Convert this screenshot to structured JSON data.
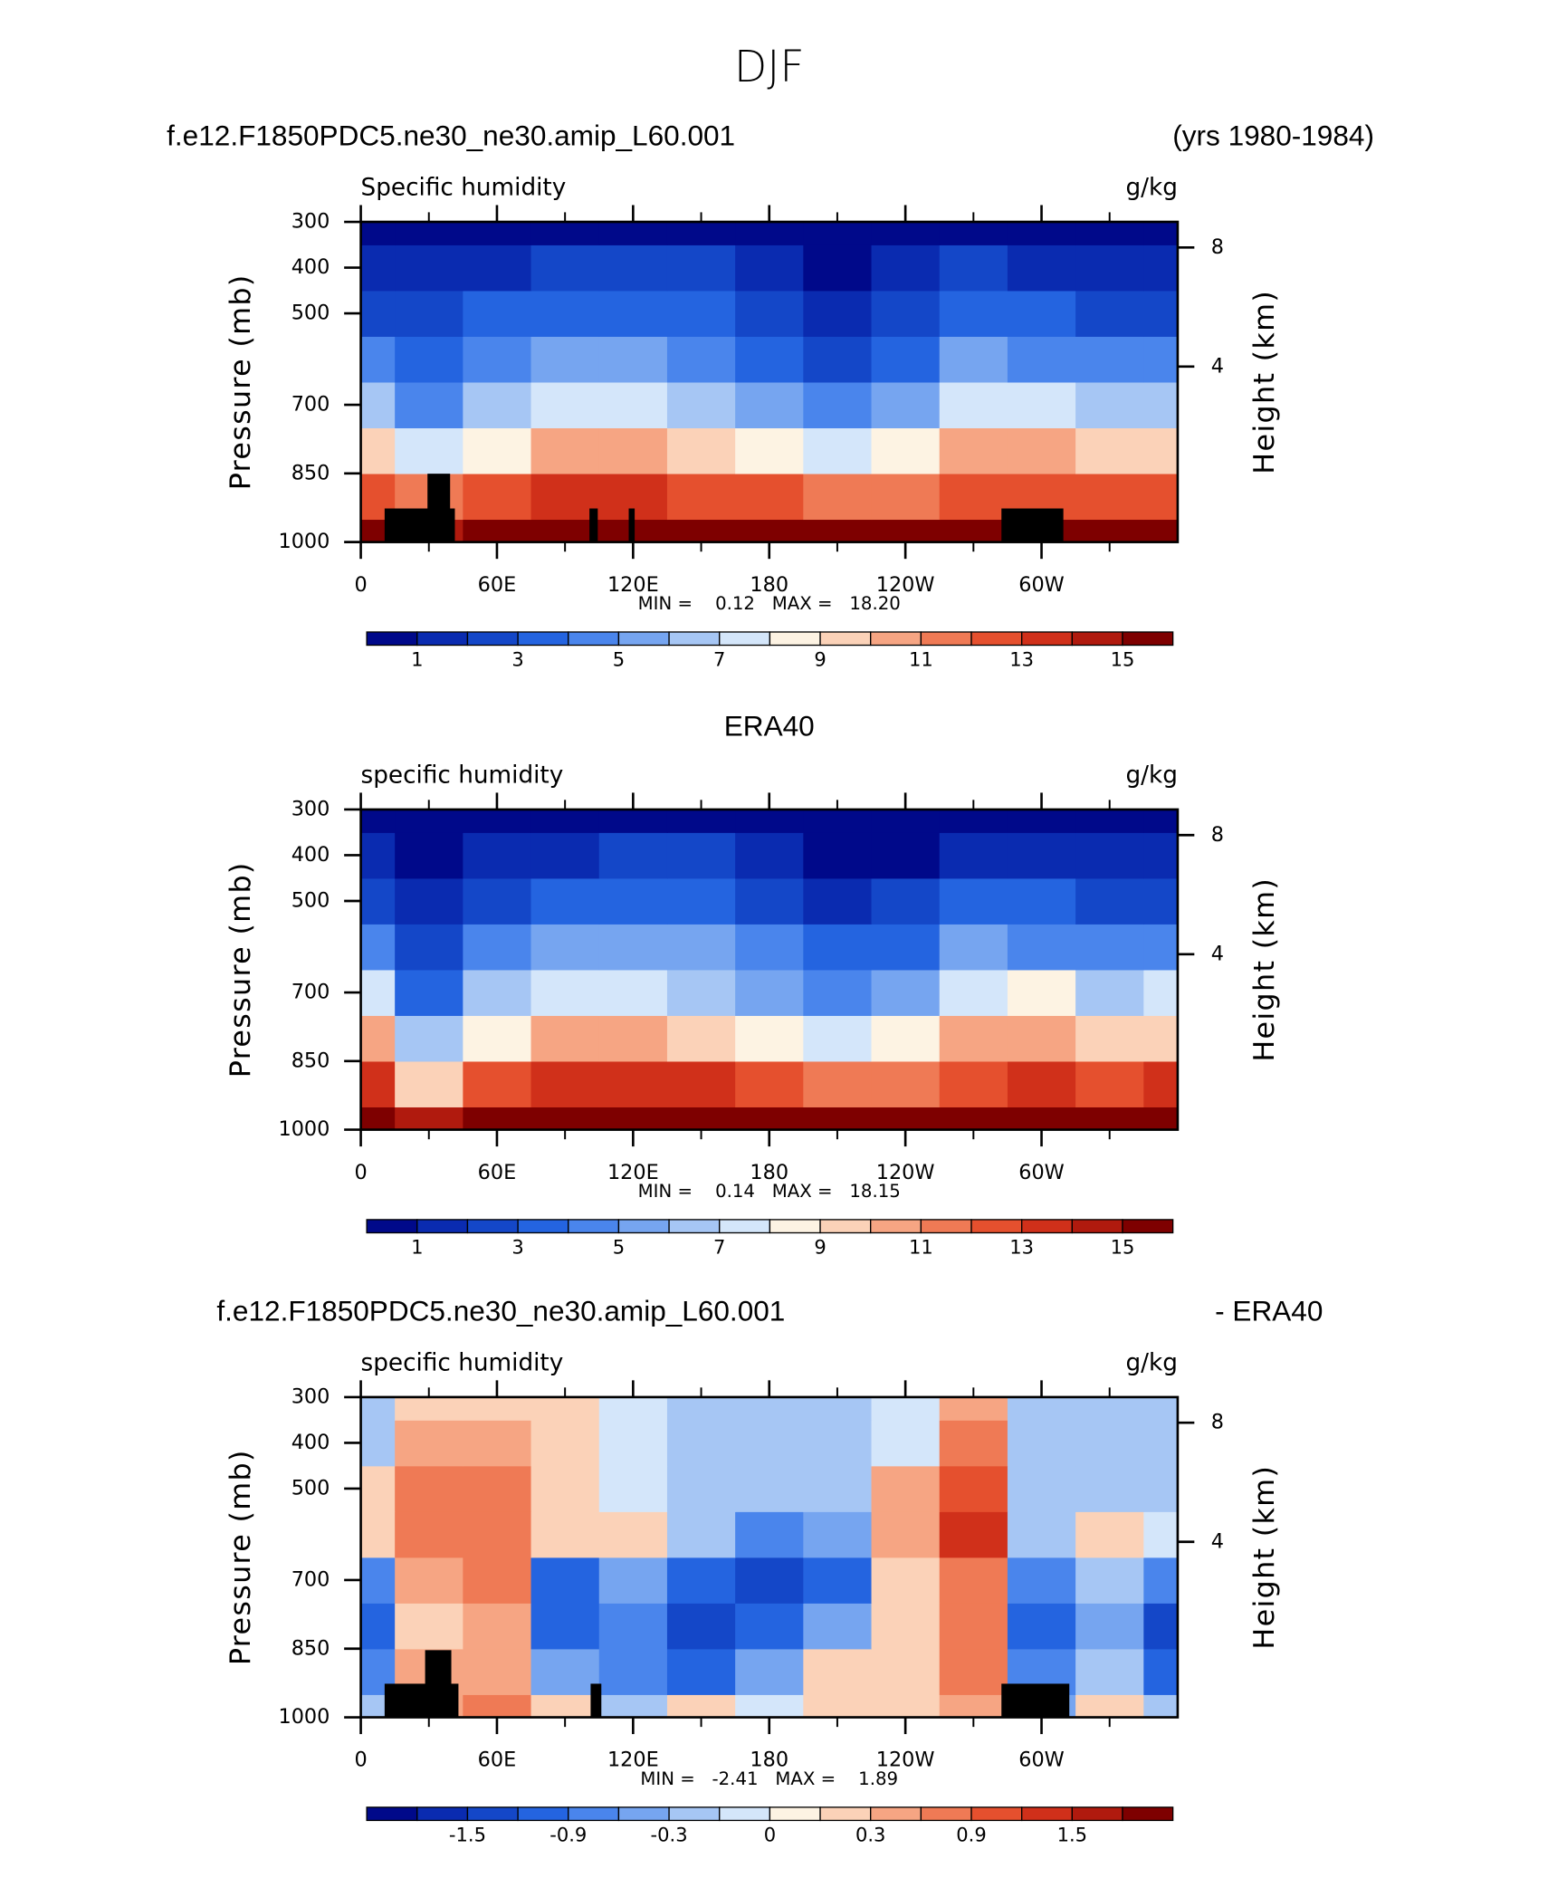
{
  "page_title": "DJF",
  "chart_data": [
    {
      "type": "contour",
      "title_left": "f.e12.F1850PDC5.ne30_ne30.amip_L60.001",
      "title_right": "(yrs 1980-1984)",
      "subtitle": "Specific humidity",
      "units": "g/kg",
      "ylabel": "Pressure (mb)",
      "y2label": "Height (km)",
      "stats": "MIN =    0.12   MAX =   18.20",
      "x": [
        0,
        30,
        60,
        90,
        120,
        150,
        180,
        210,
        240,
        270,
        300,
        330,
        360
      ],
      "y": [
        1000,
        900,
        800,
        700,
        600,
        500,
        400,
        300
      ],
      "values": [
        [
          15,
          14,
          16,
          16,
          16,
          16,
          16,
          15,
          15,
          15,
          16,
          15,
          15
        ],
        [
          12,
          11,
          12,
          13,
          13,
          12,
          12,
          11,
          11,
          12,
          12,
          12,
          12
        ],
        [
          9,
          7,
          8,
          10,
          10,
          9,
          8,
          7,
          8,
          10,
          10,
          9,
          9
        ],
        [
          6,
          4,
          6,
          7,
          7,
          6,
          5,
          4,
          5,
          7,
          7,
          6,
          6
        ],
        [
          4,
          3,
          4,
          5,
          5,
          4,
          3,
          2,
          3,
          5,
          4,
          4,
          4
        ],
        [
          2,
          2,
          3,
          3,
          3,
          3,
          2,
          1,
          2,
          3,
          3,
          2,
          2
        ],
        [
          1,
          1,
          1,
          2,
          2,
          2,
          1,
          0.5,
          1,
          2,
          1,
          1,
          1
        ],
        [
          0.4,
          0.3,
          0.4,
          0.6,
          0.6,
          0.5,
          0.4,
          0.3,
          0.4,
          0.6,
          0.4,
          0.3,
          0.3
        ]
      ],
      "xlim": [
        0,
        360
      ],
      "xticks": [
        0,
        {
          "value": 60,
          "label": "60E"
        },
        {
          "value": 120,
          "label": "120E"
        },
        180,
        {
          "value": 240,
          "label": "120W"
        },
        {
          "value": 300,
          "label": "60W"
        }
      ],
      "xminorticks": [
        30,
        90,
        150,
        210,
        270,
        330
      ],
      "ylim": [
        1000,
        300
      ],
      "yticks": [
        300,
        400,
        500,
        700,
        850,
        1000
      ],
      "y2ticks": [
        8,
        4
      ],
      "colorbar": {
        "levels": [
          1,
          2,
          3,
          4,
          5,
          6,
          7,
          8,
          9,
          10,
          11,
          12,
          13,
          14,
          15
        ],
        "colors": [
          "#00098a",
          "#0a2bb0",
          "#1447c8",
          "#2464e0",
          "#4a85ec",
          "#76a5f0",
          "#a6c6f4",
          "#d4e6fa",
          "#fdf3e3",
          "#fbd2b8",
          "#f6a583",
          "#ef7a55",
          "#e5502e",
          "#d0301a",
          "#b01a0e",
          "#7e0000"
        ],
        "ticks": [
          1,
          3,
          5,
          7,
          9,
          11,
          13,
          15
        ]
      }
    },
    {
      "type": "contour",
      "title": "ERA40",
      "subtitle": "specific humidity",
      "units": "g/kg",
      "ylabel": "Pressure (mb)",
      "y2label": "Height (km)",
      "stats": "MIN =    0.14   MAX =   18.15",
      "x": [
        0,
        30,
        60,
        90,
        120,
        150,
        180,
        210,
        240,
        270,
        300,
        330,
        360
      ],
      "y": [
        1000,
        900,
        800,
        700,
        600,
        500,
        400,
        300
      ],
      "values": [
        [
          15,
          14,
          16,
          16,
          16,
          16,
          16,
          15,
          15,
          15,
          16,
          15,
          15
        ],
        [
          13,
          9,
          12,
          13,
          13,
          13,
          12,
          11,
          11,
          12,
          13,
          12,
          13
        ],
        [
          10,
          6,
          8,
          10,
          10,
          9,
          8,
          7,
          8,
          10,
          10,
          9,
          9
        ],
        [
          7,
          3,
          6,
          7,
          7,
          6,
          5,
          4,
          5,
          7,
          8,
          6,
          7
        ],
        [
          4,
          2,
          4,
          5,
          5,
          5,
          4,
          3,
          3,
          5,
          4,
          4,
          4
        ],
        [
          2,
          1,
          2,
          3,
          3,
          3,
          2,
          1,
          2,
          3,
          3,
          2,
          2
        ],
        [
          1,
          0.6,
          1,
          1,
          2,
          2,
          1,
          0.6,
          0.6,
          1,
          1,
          1,
          1
        ],
        [
          0.5,
          0.3,
          0.3,
          0.5,
          0.6,
          0.6,
          0.5,
          0.4,
          0.3,
          0.4,
          0.4,
          0.3,
          0.3
        ]
      ],
      "xlim": [
        0,
        360
      ],
      "xticks": [
        0,
        {
          "value": 60,
          "label": "60E"
        },
        {
          "value": 120,
          "label": "120E"
        },
        180,
        {
          "value": 240,
          "label": "120W"
        },
        {
          "value": 300,
          "label": "60W"
        }
      ],
      "xminorticks": [
        30,
        90,
        150,
        210,
        270,
        330
      ],
      "ylim": [
        1000,
        300
      ],
      "yticks": [
        300,
        400,
        500,
        700,
        850,
        1000
      ],
      "y2ticks": [
        8,
        4
      ],
      "colorbar": {
        "levels": [
          1,
          2,
          3,
          4,
          5,
          6,
          7,
          8,
          9,
          10,
          11,
          12,
          13,
          14,
          15
        ],
        "colors": [
          "#00098a",
          "#0a2bb0",
          "#1447c8",
          "#2464e0",
          "#4a85ec",
          "#76a5f0",
          "#a6c6f4",
          "#d4e6fa",
          "#fdf3e3",
          "#fbd2b8",
          "#f6a583",
          "#ef7a55",
          "#e5502e",
          "#d0301a",
          "#b01a0e",
          "#7e0000"
        ],
        "ticks": [
          1,
          3,
          5,
          7,
          9,
          11,
          13,
          15
        ]
      }
    },
    {
      "type": "contour",
      "title_left": "f.e12.F1850PDC5.ne30_ne30.amip_L60.001",
      "title_right": "- ERA40",
      "subtitle": "specific humidity",
      "units": "g/kg",
      "ylabel": "Pressure (mb)",
      "y2label": "Height (km)",
      "stats": "MIN =   -2.41   MAX =    1.89",
      "x": [
        0,
        30,
        60,
        90,
        120,
        150,
        180,
        210,
        240,
        270,
        300,
        330,
        360
      ],
      "y": [
        1000,
        900,
        800,
        700,
        600,
        500,
        400,
        300
      ],
      "values": [
        [
          -0.2,
          0.3,
          0.6,
          0.1,
          -0.3,
          0.2,
          -0.1,
          0.1,
          0.2,
          0.3,
          -0.4,
          0.1,
          -0.2
        ],
        [
          -0.9,
          0.3,
          0.4,
          -0.6,
          -0.8,
          -1.2,
          -0.6,
          0.1,
          0.2,
          0.6,
          -0.9,
          -0.3,
          -1.0
        ],
        [
          -1.2,
          0.2,
          0.5,
          -1.2,
          -0.9,
          -1.5,
          -1.2,
          -0.6,
          0.2,
          0.8,
          -1.2,
          -0.6,
          -1.4
        ],
        [
          -0.9,
          0.3,
          0.6,
          -1.2,
          -0.6,
          -1.2,
          -1.5,
          -1.2,
          0.1,
          0.6,
          -0.9,
          -0.3,
          -0.9
        ],
        [
          0.1,
          0.6,
          0.6,
          0.2,
          0.1,
          -0.3,
          -0.9,
          -0.6,
          0.3,
          1.2,
          -0.3,
          0.1,
          -0.1
        ],
        [
          0.2,
          0.6,
          0.6,
          0.2,
          -0.1,
          -0.3,
          -0.3,
          -0.3,
          0.3,
          0.9,
          -0.3,
          -0.3,
          -0.3
        ],
        [
          -0.3,
          0.3,
          0.3,
          0.1,
          -0.1,
          -0.3,
          -0.3,
          -0.3,
          -0.1,
          0.6,
          -0.3,
          -0.3,
          -0.3
        ],
        [
          -0.3,
          0.1,
          0.1,
          0.1,
          -0.1,
          -0.3,
          -0.3,
          -0.3,
          -0.1,
          0.3,
          -0.3,
          -0.3,
          -0.3
        ]
      ],
      "xlim": [
        0,
        360
      ],
      "xticks": [
        0,
        {
          "value": 60,
          "label": "60E"
        },
        {
          "value": 120,
          "label": "120E"
        },
        180,
        {
          "value": 240,
          "label": "120W"
        },
        {
          "value": 300,
          "label": "60W"
        }
      ],
      "xminorticks": [
        30,
        90,
        150,
        210,
        270,
        330
      ],
      "ylim": [
        1000,
        300
      ],
      "yticks": [
        300,
        400,
        500,
        700,
        850,
        1000
      ],
      "y2ticks": [
        8,
        4
      ],
      "colorbar": {
        "levels": [
          -1.8,
          -1.5,
          -1.2,
          -0.9,
          -0.6,
          -0.3,
          -0.1,
          0,
          0.1,
          0.3,
          0.6,
          0.9,
          1.2,
          1.5,
          1.8
        ],
        "colors": [
          "#00098a",
          "#0a2bb0",
          "#1447c8",
          "#2464e0",
          "#4a85ec",
          "#76a5f0",
          "#a6c6f4",
          "#d4e6fa",
          "#fdf3e3",
          "#fbd2b8",
          "#f6a583",
          "#ef7a55",
          "#e5502e",
          "#d0301a",
          "#b01a0e",
          "#7e0000"
        ],
        "ticks": [
          -1.5,
          -0.9,
          -0.3,
          0,
          0.3,
          0.9,
          1.5
        ]
      }
    }
  ]
}
